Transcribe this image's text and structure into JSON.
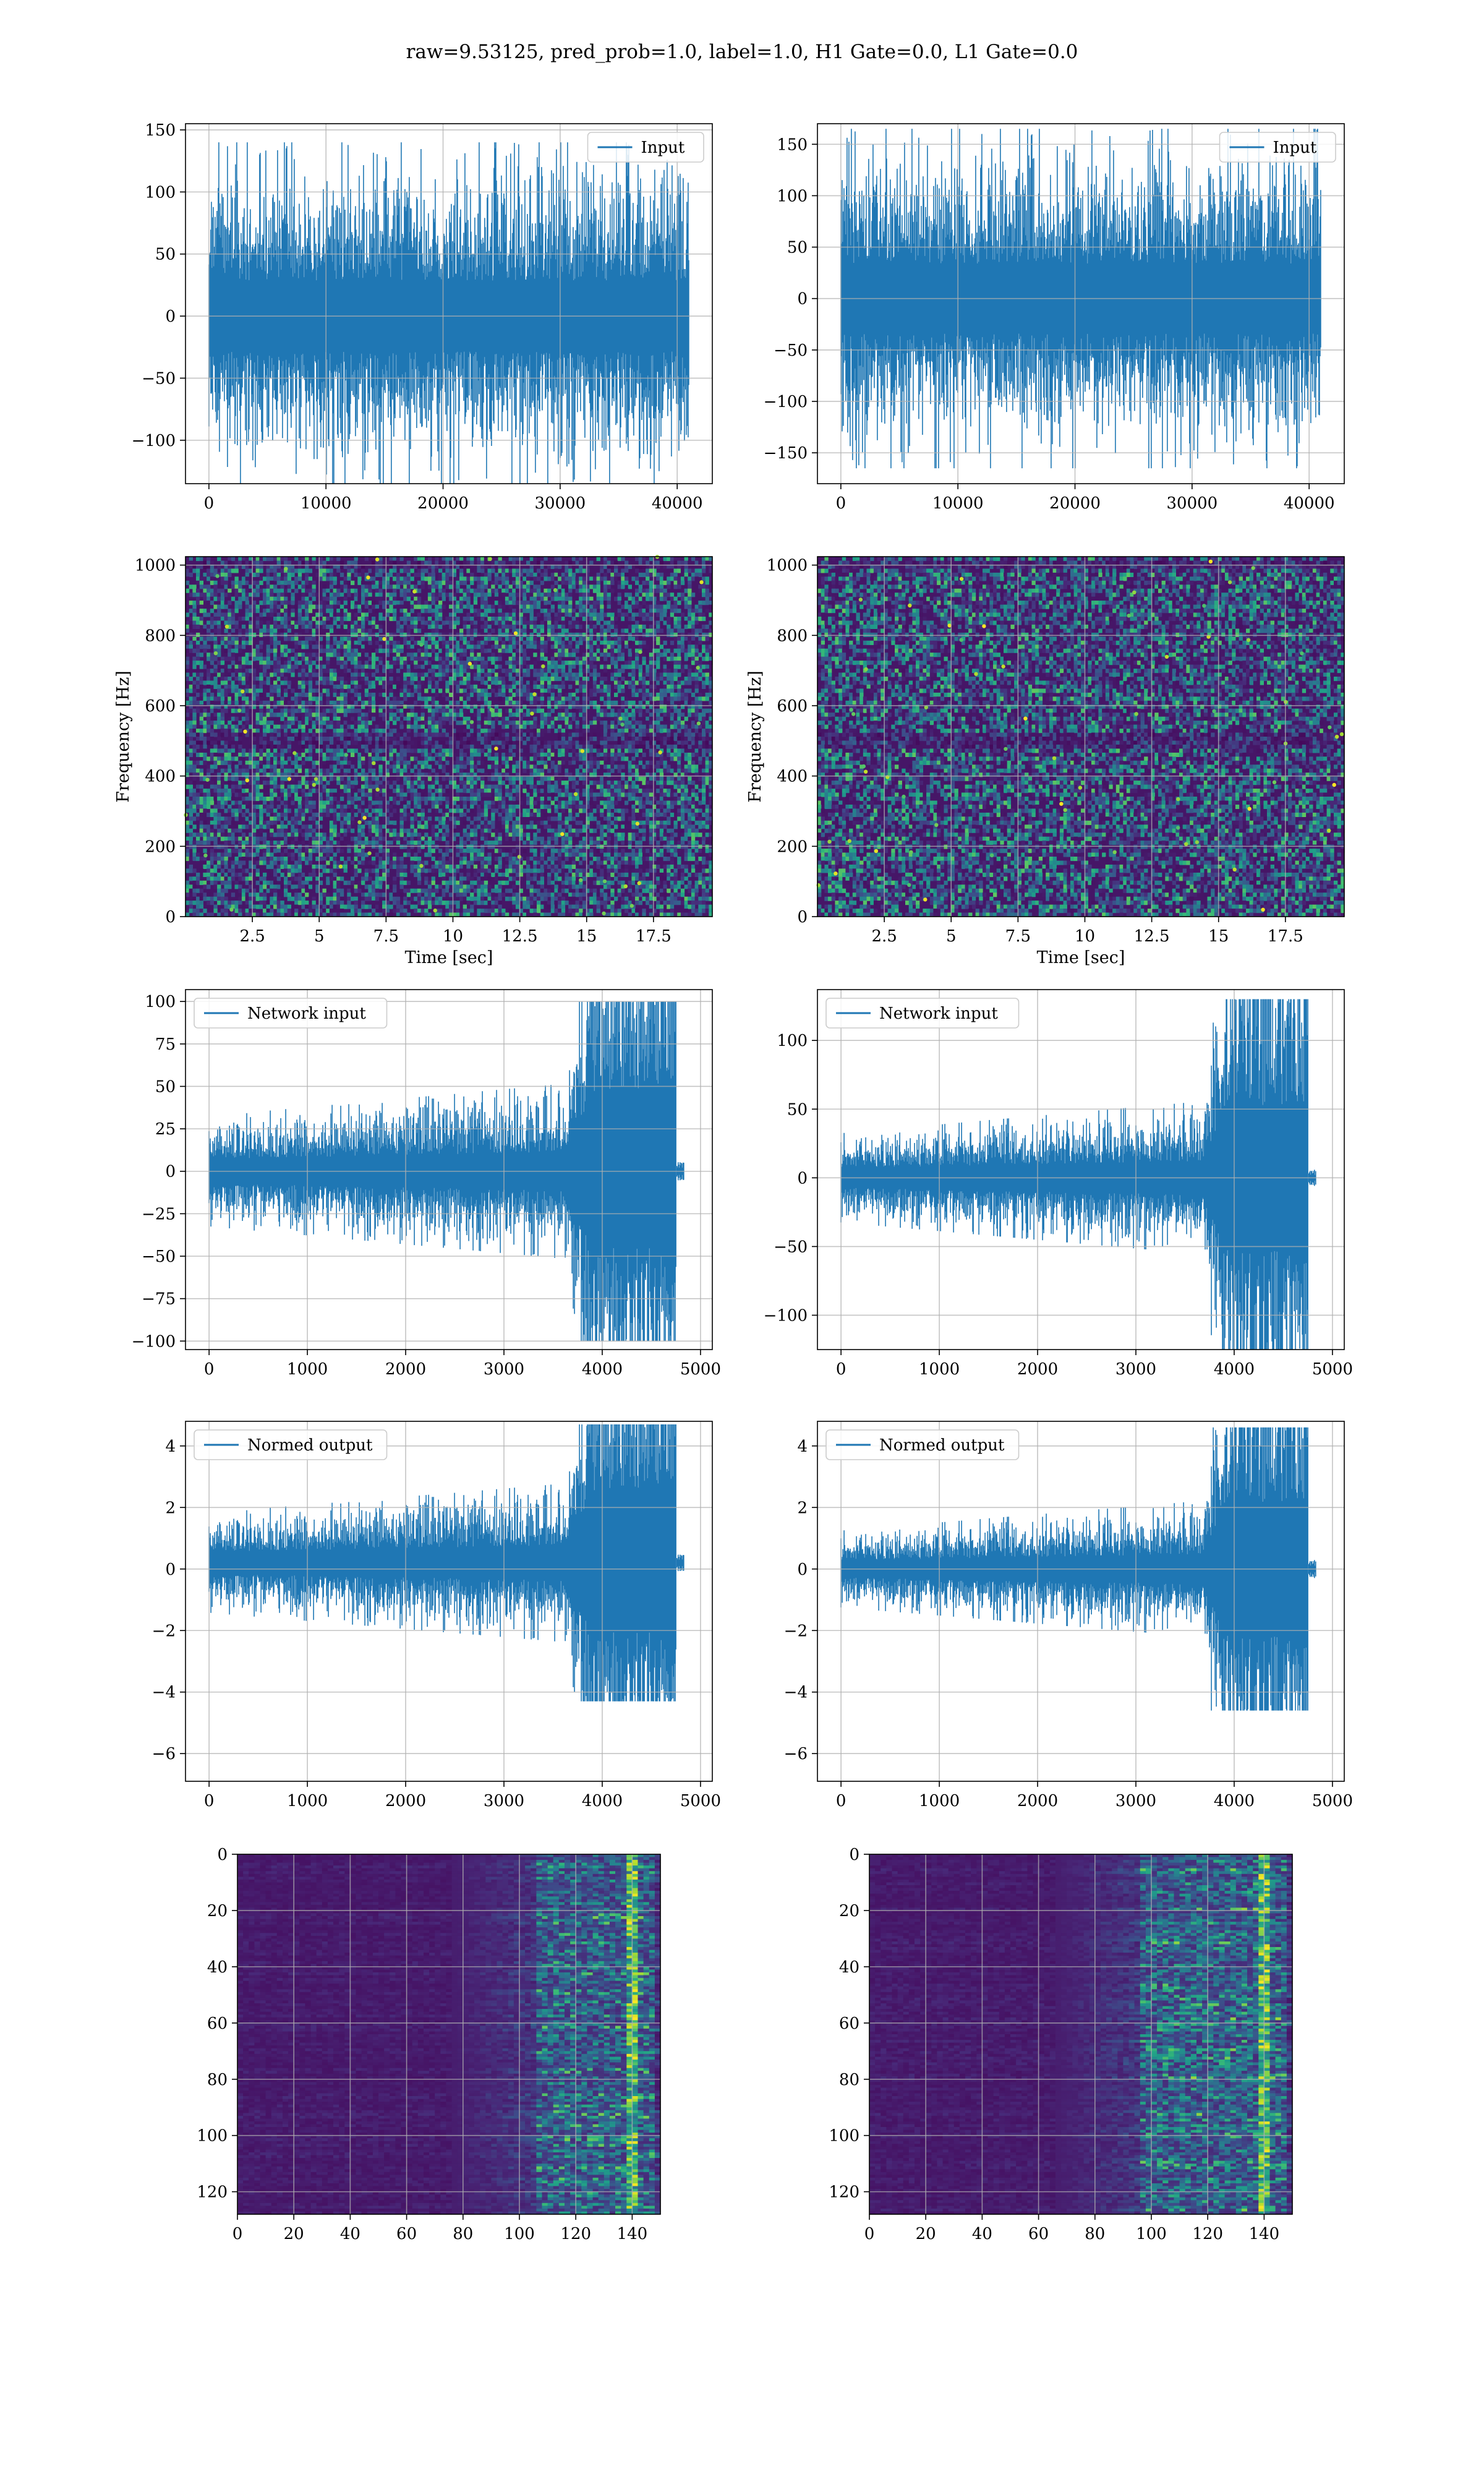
{
  "figure": {
    "title": "raw=9.53125, pred_prob=1.0, label=1.0, H1 Gate=0.0, L1 Gate=0.0"
  },
  "chart_data": [
    {
      "id": "r1c1",
      "type": "line",
      "row": 1,
      "col": 1,
      "legend": "Input",
      "legend_loc": "upper right",
      "xlim": [
        -2000,
        43000
      ],
      "ylim": [
        -135,
        155
      ],
      "xticks": [
        0,
        10000,
        20000,
        30000,
        40000
      ],
      "yticks": [
        -100,
        -50,
        0,
        50,
        100,
        150
      ],
      "grid": true,
      "color": "#1f77b4",
      "signal": {
        "x_start": 0,
        "x_end": 40960,
        "noise_amp": 52,
        "noise_peak": 140,
        "seed": 11
      }
    },
    {
      "id": "r1c2",
      "type": "line",
      "row": 1,
      "col": 2,
      "legend": "Input",
      "legend_loc": "upper right",
      "xlim": [
        -2000,
        43000
      ],
      "ylim": [
        -180,
        170
      ],
      "xticks": [
        0,
        10000,
        20000,
        30000,
        40000
      ],
      "yticks": [
        -150,
        -100,
        -50,
        0,
        50,
        100,
        150
      ],
      "grid": true,
      "color": "#1f77b4",
      "signal": {
        "x_start": 0,
        "x_end": 40960,
        "noise_amp": 62,
        "noise_peak": 165,
        "seed": 23
      }
    },
    {
      "id": "r2c1",
      "type": "heatmap",
      "row": 2,
      "col": 1,
      "xlabel": "Time [sec]",
      "ylabel": "Frequency [Hz]",
      "xlim": [
        0,
        19.7
      ],
      "ylim": [
        0,
        1024
      ],
      "xticks": [
        2.5,
        5.0,
        7.5,
        10.0,
        12.5,
        15.0,
        17.5
      ],
      "yticks": [
        0,
        200,
        400,
        600,
        800,
        1000
      ],
      "grid": true,
      "colormap": "viridis",
      "texture": {
        "cols": 150,
        "rows": 90,
        "seed": 5,
        "dark_band_hz": 500
      }
    },
    {
      "id": "r2c2",
      "type": "heatmap",
      "row": 2,
      "col": 2,
      "xlabel": "Time [sec]",
      "ylabel": "Frequency [Hz]",
      "xlim": [
        0,
        19.7
      ],
      "ylim": [
        0,
        1024
      ],
      "xticks": [
        2.5,
        5.0,
        7.5,
        10.0,
        12.5,
        15.0,
        17.5
      ],
      "yticks": [
        0,
        200,
        400,
        600,
        800,
        1000
      ],
      "grid": true,
      "colormap": "viridis",
      "texture": {
        "cols": 150,
        "rows": 90,
        "seed": 9,
        "dark_band_hz": 500
      }
    },
    {
      "id": "r3c1",
      "type": "line",
      "row": 3,
      "col": 1,
      "legend": "Network input",
      "legend_loc": "upper left",
      "xlim": [
        -240,
        5120
      ],
      "ylim": [
        -105,
        107
      ],
      "xticks": [
        0,
        1000,
        2000,
        3000,
        4000,
        5000
      ],
      "yticks": [
        -100,
        -75,
        -50,
        -25,
        0,
        25,
        50,
        75,
        100
      ],
      "grid": true,
      "color": "#1f77b4",
      "signal": {
        "x_start": 0,
        "x_end": 4750,
        "noise_amp": 13,
        "noise_growth": 10,
        "burst_start": 3650,
        "burst_amp": 60,
        "burst_peak": 100,
        "tail_start": 4760,
        "tail_end": 4830,
        "tail_amp": 4,
        "seed": 31
      }
    },
    {
      "id": "r3c2",
      "type": "line",
      "row": 3,
      "col": 2,
      "legend": "Network input",
      "legend_loc": "upper left",
      "xlim": [
        -240,
        5120
      ],
      "ylim": [
        -125,
        137
      ],
      "xticks": [
        0,
        1000,
        2000,
        3000,
        4000,
        5000
      ],
      "yticks": [
        -100,
        -50,
        0,
        50,
        100
      ],
      "grid": true,
      "color": "#1f77b4",
      "signal": {
        "x_start": 0,
        "x_end": 4750,
        "noise_amp": 13,
        "noise_growth": 12,
        "burst_start": 3680,
        "burst_amp": 72,
        "burst_peak": 130,
        "tail_start": 4760,
        "tail_end": 4830,
        "tail_amp": 4,
        "seed": 47
      }
    },
    {
      "id": "r4c1",
      "type": "line",
      "row": 4,
      "col": 1,
      "legend": "Normed output",
      "legend_loc": "upper left",
      "xlim": [
        -240,
        5120
      ],
      "ylim": [
        -6.9,
        4.8
      ],
      "xticks": [
        0,
        1000,
        2000,
        3000,
        4000,
        5000
      ],
      "yticks": [
        -6,
        -4,
        -2,
        0,
        2,
        4
      ],
      "grid": true,
      "color": "#1f77b4",
      "signal": {
        "x_start": 0,
        "x_end": 4750,
        "noise_amp": 0.65,
        "noise_growth": 0.5,
        "burst_start": 3650,
        "burst_amp": 3.0,
        "burst_peak": 4.5,
        "tail_start": 4760,
        "tail_end": 4830,
        "tail_amp": 0.2,
        "seed": 31,
        "offset": 0.2
      }
    },
    {
      "id": "r4c2",
      "type": "line",
      "row": 4,
      "col": 2,
      "legend": "Normed output",
      "legend_loc": "upper left",
      "xlim": [
        -240,
        5120
      ],
      "ylim": [
        -6.9,
        4.8
      ],
      "xticks": [
        0,
        1000,
        2000,
        3000,
        4000,
        5000
      ],
      "yticks": [
        -6,
        -4,
        -2,
        0,
        2,
        4
      ],
      "grid": true,
      "color": "#1f77b4",
      "signal": {
        "x_start": 0,
        "x_end": 4750,
        "noise_amp": 0.5,
        "noise_growth": 0.5,
        "burst_start": 3680,
        "burst_amp": 3.0,
        "burst_peak": 4.6,
        "tail_start": 4760,
        "tail_end": 4830,
        "tail_amp": 0.2,
        "seed": 47,
        "offset": 0.0
      }
    },
    {
      "id": "r5c1",
      "type": "heatmap",
      "row": 5,
      "col": 1,
      "xlim": [
        0,
        150
      ],
      "ylim": [
        128,
        0
      ],
      "xticks": [
        0,
        20,
        40,
        60,
        80,
        100,
        120,
        140
      ],
      "yticks": [
        0,
        20,
        40,
        60,
        80,
        100,
        120
      ],
      "grid": true,
      "colormap": "viridis",
      "texture": {
        "cols": 150,
        "rows": 128,
        "seed": 17,
        "onset": 105,
        "bright_col": 140
      }
    },
    {
      "id": "r5c2",
      "type": "heatmap",
      "row": 5,
      "col": 2,
      "xlim": [
        0,
        150
      ],
      "ylim": [
        128,
        0
      ],
      "xticks": [
        0,
        20,
        40,
        60,
        80,
        100,
        120,
        140
      ],
      "yticks": [
        0,
        20,
        40,
        60,
        80,
        100,
        120
      ],
      "grid": true,
      "colormap": "viridis",
      "texture": {
        "cols": 150,
        "rows": 128,
        "seed": 29,
        "onset": 95,
        "bright_col": 140
      }
    }
  ]
}
